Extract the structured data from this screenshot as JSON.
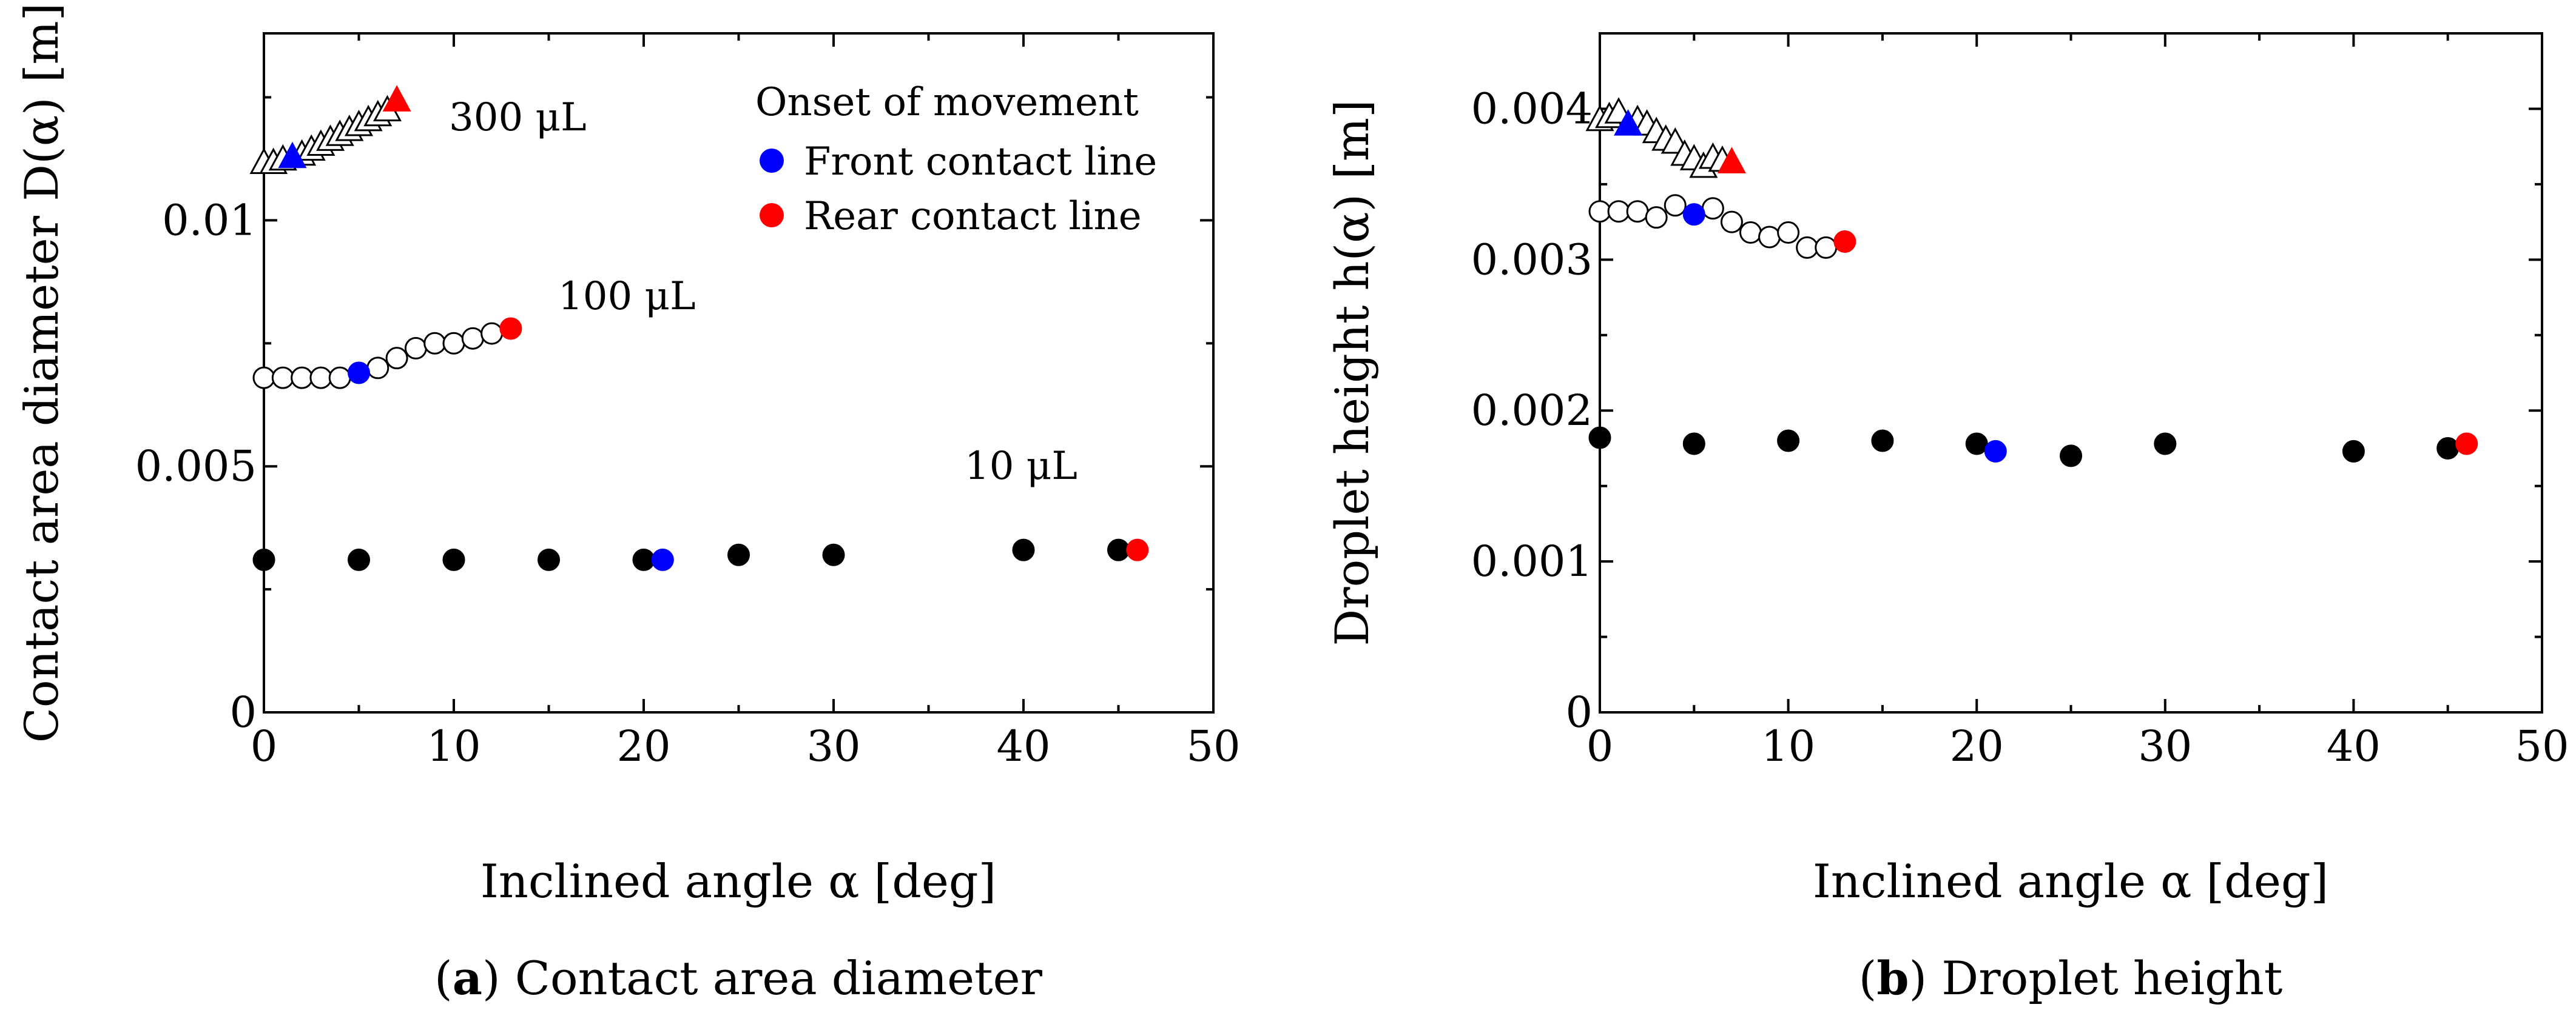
{
  "captions": {
    "a_letter": "a",
    "a_text": " Contact area diameter",
    "b_letter": "b",
    "b_text": " Droplet height"
  },
  "legend": {
    "title": "Onset of movement",
    "front": "Front contact line",
    "rear": "Rear contact line",
    "front_color": "#0000ff",
    "rear_color": "#ff0000"
  },
  "chart_data": [
    {
      "type": "scatter",
      "id": "a",
      "title": "Contact area diameter",
      "xlabel": "Inclined angle α [deg]",
      "ylabel": "Contact area diameter D(α) [m]",
      "xlim": [
        0,
        50
      ],
      "ylim": [
        0,
        0.0138
      ],
      "x_ticks": [
        0,
        10,
        20,
        30,
        40,
        50
      ],
      "x_tick_labels": [
        "0",
        "10",
        "20",
        "30",
        "40",
        "50"
      ],
      "y_ticks": [
        0,
        0.005,
        0.01
      ],
      "y_tick_labels": [
        "0",
        "0.005",
        "0.01"
      ],
      "series": [
        {
          "name": "300 μL",
          "marker": "triangle-open",
          "label_pos": [
            10,
            0.0122
          ],
          "x": [
            0,
            0.5,
            1,
            2,
            2.5,
            3,
            3.5,
            4,
            4.5,
            5,
            5.5,
            6,
            6.5
          ],
          "y": [
            0.01118,
            0.01118,
            0.01125,
            0.01135,
            0.01145,
            0.01155,
            0.01165,
            0.01175,
            0.01185,
            0.01195,
            0.01205,
            0.01215,
            0.01225
          ],
          "front": {
            "x": 1.5,
            "y": 0.0113
          },
          "rear": {
            "x": 7,
            "y": 0.01245
          }
        },
        {
          "name": "100 μL",
          "marker": "circle-open",
          "label_pos": [
            15.5,
            0.0083
          ],
          "x": [
            0,
            1,
            2,
            3,
            4,
            6,
            7,
            8,
            9,
            10,
            11,
            12
          ],
          "y": [
            0.0068,
            0.0068,
            0.0068,
            0.0068,
            0.0068,
            0.007,
            0.0072,
            0.0074,
            0.0075,
            0.0075,
            0.0076,
            0.0077
          ],
          "front": {
            "x": 5,
            "y": 0.0069
          },
          "rear": {
            "x": 13,
            "y": 0.0078
          }
        },
        {
          "name": "10 μL",
          "marker": "circle-filled",
          "label_pos": [
            41,
            0.0048
          ],
          "x": [
            0,
            5,
            10,
            15,
            20,
            25,
            30,
            40,
            45
          ],
          "y": [
            0.0031,
            0.0031,
            0.0031,
            0.0031,
            0.0031,
            0.0032,
            0.0032,
            0.0033,
            0.0033
          ],
          "front": {
            "x": 21,
            "y": 0.0031
          },
          "rear": {
            "x": 46,
            "y": 0.0033
          }
        }
      ]
    },
    {
      "type": "scatter",
      "id": "b",
      "title": "Droplet height",
      "xlabel": "Inclined angle α [deg]",
      "ylabel": "Droplet height h(α) [m]",
      "xlim": [
        0,
        50
      ],
      "ylim": [
        0,
        0.0045
      ],
      "x_ticks": [
        0,
        10,
        20,
        30,
        40,
        50
      ],
      "x_tick_labels": [
        "0",
        "10",
        "20",
        "30",
        "40",
        "50"
      ],
      "y_ticks": [
        0,
        0.001,
        0.002,
        0.003,
        0.004
      ],
      "y_tick_labels": [
        "0",
        "0.001",
        "0.002",
        "0.003",
        "0.004"
      ],
      "series": [
        {
          "name": "300 μL",
          "marker": "triangle-open",
          "x": [
            0,
            0.5,
            1,
            2,
            2.5,
            3,
            3.5,
            4,
            4.5,
            5,
            5.5,
            6,
            6.5
          ],
          "y": [
            0.00393,
            0.00395,
            0.00398,
            0.00393,
            0.0039,
            0.00385,
            0.0038,
            0.00378,
            0.0037,
            0.00367,
            0.00362,
            0.00368,
            0.00366
          ],
          "front": {
            "x": 1.5,
            "y": 0.0039
          },
          "rear": {
            "x": 7,
            "y": 0.00365
          }
        },
        {
          "name": "100 μL",
          "marker": "circle-open",
          "x": [
            0,
            1,
            2,
            3,
            4,
            6,
            7,
            8,
            9,
            10,
            11,
            12
          ],
          "y": [
            0.00332,
            0.00332,
            0.00332,
            0.00328,
            0.00336,
            0.00334,
            0.00325,
            0.00318,
            0.00315,
            0.00318,
            0.00308,
            0.00308
          ],
          "front": {
            "x": 5,
            "y": 0.0033
          },
          "rear": {
            "x": 13,
            "y": 0.00312
          }
        },
        {
          "name": "10 μL",
          "marker": "circle-filled",
          "x": [
            0,
            5,
            10,
            15,
            20,
            25,
            30,
            40,
            45
          ],
          "y": [
            0.00182,
            0.00178,
            0.0018,
            0.0018,
            0.00178,
            0.0017,
            0.00178,
            0.00173,
            0.00175
          ],
          "front": {
            "x": 21,
            "y": 0.00173
          },
          "rear": {
            "x": 46,
            "y": 0.00178
          }
        }
      ]
    }
  ]
}
